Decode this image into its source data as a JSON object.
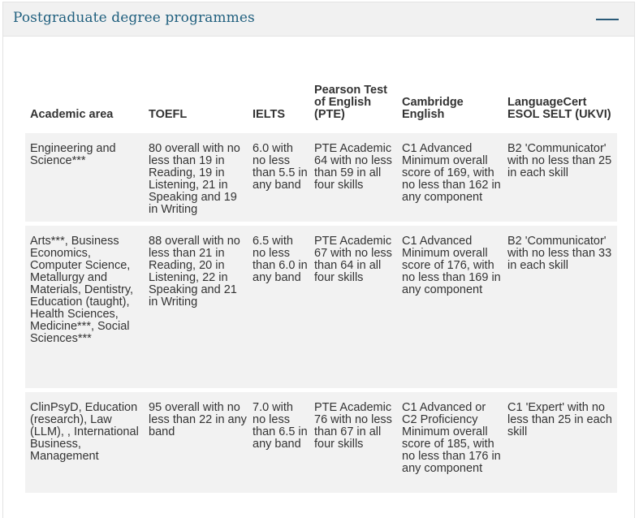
{
  "panel": {
    "title": "Postgraduate degree programmes",
    "collapse_icon": "minus-icon"
  },
  "table": {
    "headers": [
      "Academic area",
      "TOEFL",
      "IELTS",
      "Pearson Test of English (PTE)",
      "Cambridge English",
      "LanguageCert ESOL SELT (UKVI)"
    ],
    "rows": [
      {
        "area": "Engineering and Science***",
        "toefl": "80 overall with no less than 19 in Reading, 19 in Listening, 21 in Speaking and 19 in Writing",
        "ielts": "6.0 with no less than 5.5 in any band",
        "pte": "PTE Academic 64 with no less than 59 in all four skills",
        "cambridge": "C1 Advanced Minimum overall score of 169, with no less than 162 in any component",
        "languagecert": "B2 'Communicator' with no less than 25 in each skill"
      },
      {
        "area": "Arts***, Business Economics, Computer Science, Metallurgy and Materials, Dentistry, Education (taught), Health Sciences, Medicine***, Social Sciences***",
        "toefl": "88 overall with no less than 21 in Reading, 20 in Listening, 22 in Speaking and 21 in Writing",
        "ielts": "6.5 with no less than 6.0 in any band",
        "pte": "PTE Academic 67 with no less than 64 in all four skills",
        "cambridge": "C1 Advanced Minimum overall score of 176, with no less than 169 in any component",
        "languagecert": "B2 'Communicator' with no less than 33 in each skill"
      },
      {
        "area": "ClinPsyD, Education (research), Law (LLM), , International Business, Management",
        "toefl": "95 overall with no less than 22 in any band",
        "ielts": "7.0 with no less than 6.5 in any band",
        "pte": "PTE Academic 76 with no less than 67 in all four skills",
        "cambridge": "C1 Advanced or C2 Proficiency Minimum overall score of 185, with no less than 176 in any component",
        "languagecert": "C1 'Expert' with no less than 25 in each skill"
      }
    ]
  }
}
